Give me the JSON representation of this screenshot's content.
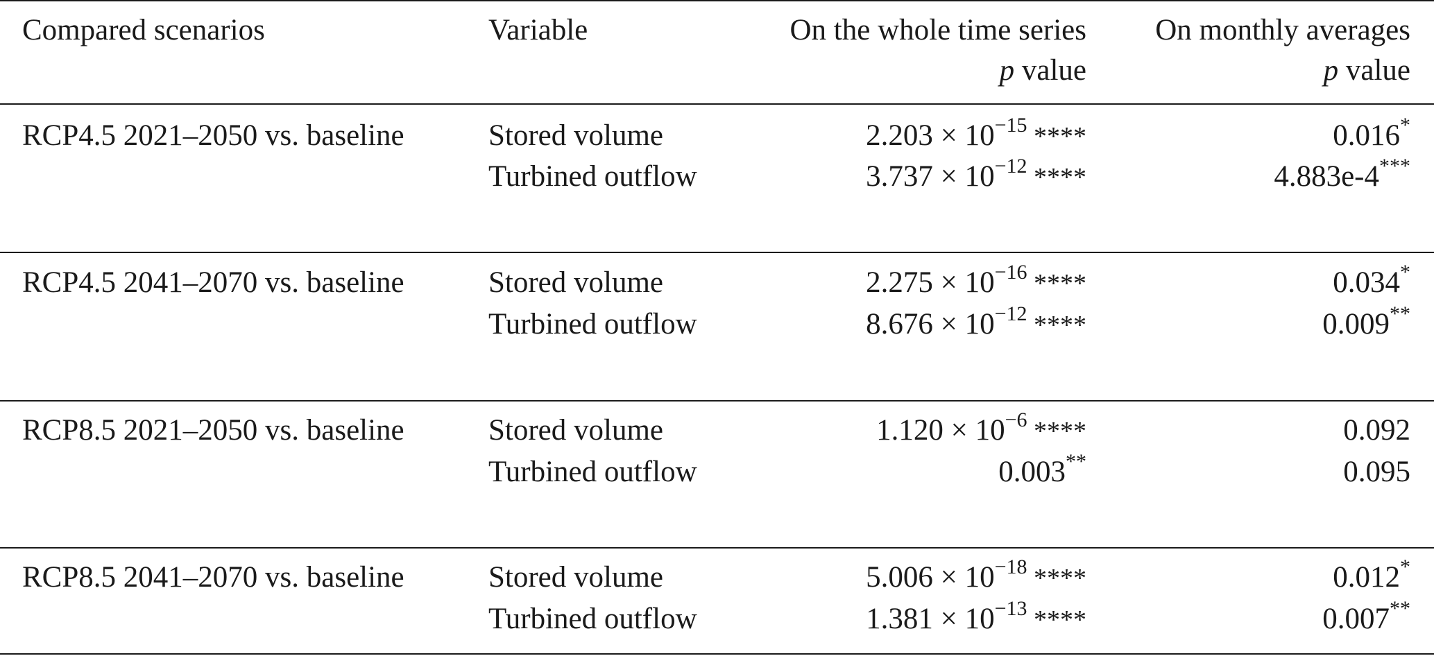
{
  "table": {
    "headers": {
      "scenarios": "Compared scenarios",
      "variable": "Variable",
      "whole_series": "On the whole time series",
      "monthly": "On monthly averages",
      "p_symbol": "p",
      "p_word": "value"
    },
    "rows": [
      {
        "scenario": "RCP4.5 2021–2050 vs. baseline",
        "var1": "Stored volume",
        "var2": "Turbined outflow",
        "w1_mant": "2.203 × 10",
        "w1_exp": "−15",
        "w1_sig": " ****",
        "w2_mant": "3.737 × 10",
        "w2_exp": "−12",
        "w2_sig": " ****",
        "m1": "0.016",
        "m1_sig": "*",
        "m2": "4.883e-4",
        "m2_sig": "***"
      },
      {
        "scenario": "RCP4.5 2041–2070 vs. baseline",
        "var1": "Stored volume",
        "var2": "Turbined outflow",
        "w1_mant": "2.275 × 10",
        "w1_exp": "−16",
        "w1_sig": " ****",
        "w2_mant": "8.676 × 10",
        "w2_exp": "−12",
        "w2_sig": " ****",
        "m1": "0.034",
        "m1_sig": "*",
        "m2": "0.009",
        "m2_sig": "**"
      },
      {
        "scenario": "RCP8.5 2021–2050 vs. baseline",
        "var1": "Stored volume",
        "var2": "Turbined outflow",
        "w1_mant": "1.120 × 10",
        "w1_exp": "−6",
        "w1_sig": " ****",
        "w2_plain": "0.003",
        "w2_sig": "**",
        "m1": "0.092",
        "m2": "0.095"
      },
      {
        "scenario": "RCP8.5 2041–2070 vs. baseline",
        "var1": "Stored volume",
        "var2": "Turbined outflow",
        "w1_mant": "5.006 × 10",
        "w1_exp": "−18",
        "w1_sig": " ****",
        "w2_mant": "1.381 × 10",
        "w2_exp": "−13",
        "w2_sig": " ****",
        "m1": "0.012",
        "m1_sig": "*",
        "m2": "0.007",
        "m2_sig": "**"
      }
    ]
  }
}
